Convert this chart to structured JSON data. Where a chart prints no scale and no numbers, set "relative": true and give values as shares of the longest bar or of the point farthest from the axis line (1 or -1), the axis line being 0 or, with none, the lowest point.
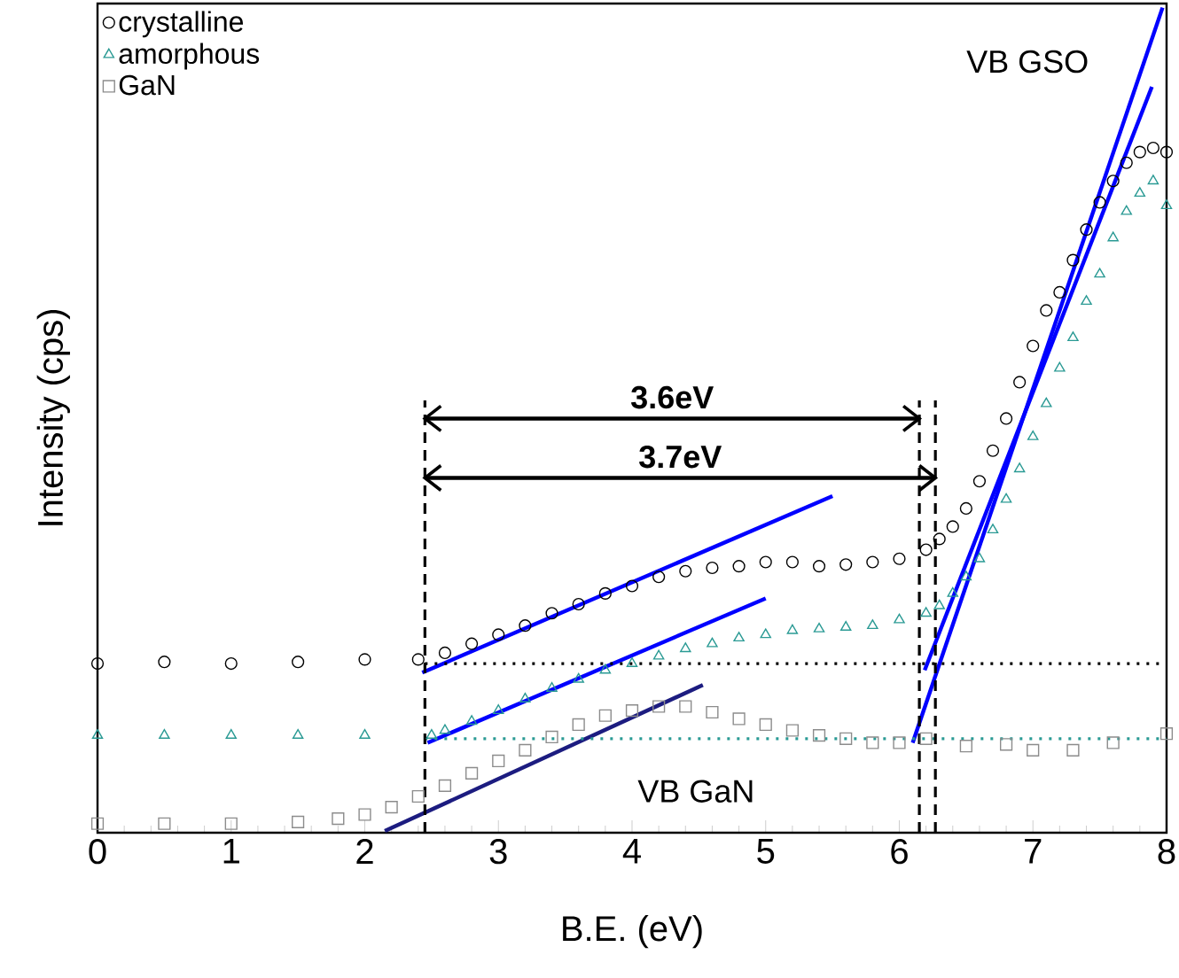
{
  "chart_data": {
    "type": "scatter",
    "relative": true,
    "xlabel": "B.E. (eV)",
    "ylabel": "Intensity (cps)",
    "xlim": [
      0,
      8
    ],
    "xticks": [
      0,
      1,
      2,
      3,
      4,
      5,
      6,
      7,
      8
    ],
    "legend": "top left",
    "annotations": [
      "3.6eV",
      "3.7eV",
      "VB GSO",
      "VB GaN"
    ],
    "series": [
      {
        "name": "crystalline",
        "marker": "circle",
        "color": "#000000",
        "x": [
          0,
          0.5,
          1,
          1.5,
          2,
          2.4,
          2.6,
          2.8,
          3.0,
          3.2,
          3.4,
          3.6,
          3.8,
          4.0,
          4.2,
          4.4,
          4.6,
          4.8,
          5.0,
          5.2,
          5.4,
          5.6,
          5.8,
          6.0,
          6.2,
          6.3,
          6.4,
          6.5,
          6.6,
          6.7,
          6.8,
          6.9,
          7.0,
          7.1,
          7.2,
          7.3,
          7.4,
          7.5,
          7.6,
          7.7,
          7.8,
          7.9,
          8.0
        ],
        "values": [
          0.205,
          0.207,
          0.205,
          0.207,
          0.21,
          0.21,
          0.218,
          0.229,
          0.24,
          0.251,
          0.266,
          0.277,
          0.29,
          0.299,
          0.31,
          0.317,
          0.321,
          0.323,
          0.328,
          0.328,
          0.323,
          0.325,
          0.328,
          0.332,
          0.343,
          0.356,
          0.371,
          0.393,
          0.426,
          0.463,
          0.502,
          0.546,
          0.59,
          0.633,
          0.655,
          0.694,
          0.731,
          0.764,
          0.79,
          0.812,
          0.825,
          0.83,
          0.825
        ]
      },
      {
        "name": "amorphous",
        "marker": "triangle",
        "color": "#2a9a94",
        "x": [
          0,
          0.5,
          1,
          1.5,
          2,
          2.5,
          2.6,
          2.8,
          3.0,
          3.2,
          3.4,
          3.6,
          3.8,
          4.0,
          4.2,
          4.4,
          4.6,
          4.8,
          5.0,
          5.2,
          5.4,
          5.6,
          5.8,
          6.0,
          6.2,
          6.3,
          6.4,
          6.5,
          6.6,
          6.7,
          6.8,
          6.9,
          7.0,
          7.1,
          7.2,
          7.3,
          7.4,
          7.5,
          7.6,
          7.7,
          7.8,
          7.9,
          8.0
        ],
        "values": [
          0.118,
          0.118,
          0.118,
          0.118,
          0.118,
          0.118,
          0.124,
          0.135,
          0.148,
          0.162,
          0.175,
          0.186,
          0.197,
          0.205,
          0.214,
          0.223,
          0.229,
          0.236,
          0.24,
          0.245,
          0.247,
          0.249,
          0.251,
          0.258,
          0.266,
          0.275,
          0.29,
          0.31,
          0.332,
          0.367,
          0.404,
          0.441,
          0.48,
          0.52,
          0.563,
          0.6,
          0.644,
          0.677,
          0.721,
          0.753,
          0.775,
          0.79,
          0.76
        ]
      },
      {
        "name": "GaN",
        "marker": "square",
        "color": "#8c8c8c",
        "x": [
          0,
          0.5,
          1,
          1.5,
          1.8,
          2.0,
          2.2,
          2.4,
          2.6,
          2.8,
          3.0,
          3.2,
          3.4,
          3.6,
          3.8,
          4.0,
          4.2,
          4.4,
          4.6,
          4.8,
          5.0,
          5.2,
          5.4,
          5.6,
          5.8,
          6.0,
          6.2,
          6.5,
          6.8,
          7.0,
          7.3,
          7.6,
          8.0
        ],
        "values": [
          0.011,
          0.011,
          0.011,
          0.013,
          0.017,
          0.022,
          0.031,
          0.044,
          0.057,
          0.072,
          0.087,
          0.1,
          0.116,
          0.131,
          0.142,
          0.148,
          0.153,
          0.153,
          0.146,
          0.138,
          0.131,
          0.124,
          0.118,
          0.114,
          0.109,
          0.109,
          0.114,
          0.105,
          0.107,
          0.1,
          0.1,
          0.109,
          0.12
        ]
      },
      {
        "type": "line",
        "color": "#0000ff",
        "line_style": "solid",
        "x": [
          2.43,
          5.5
        ],
        "values": [
          0.194,
          0.408
        ]
      },
      {
        "type": "line",
        "color": "#0000ff",
        "line_style": "solid",
        "x": [
          2.47,
          5.0
        ],
        "values": [
          0.109,
          0.284
        ]
      },
      {
        "type": "line",
        "color": "#1c1c80",
        "line_style": "solid",
        "x": [
          2.15,
          4.53
        ],
        "values": [
          0.002,
          0.179
        ]
      },
      {
        "type": "line",
        "color": "#0000ff",
        "line_style": "solid",
        "x": [
          6.1,
          7.97
        ],
        "values": [
          0.109,
          1.0
        ]
      },
      {
        "type": "line",
        "color": "#0000ff",
        "line_style": "solid",
        "x": [
          6.19,
          7.89
        ],
        "values": [
          0.197,
          0.904
        ]
      },
      {
        "type": "line",
        "color": "#000000",
        "line_style": "dotted",
        "x": [
          2.45,
          8.0
        ],
        "values": [
          0.205,
          0.205
        ]
      },
      {
        "type": "line",
        "color": "#2a9a94",
        "line_style": "dotted",
        "x": [
          2.45,
          8.0
        ],
        "values": [
          0.114,
          0.114
        ]
      },
      {
        "type": "line",
        "color": "#000000",
        "line_style": "dashed",
        "x": [
          2.45,
          2.45
        ],
        "values": [
          0,
          0.524
        ]
      },
      {
        "type": "line",
        "color": "#000000",
        "line_style": "dashed",
        "x": [
          6.15,
          6.15
        ],
        "values": [
          0,
          0.524
        ]
      },
      {
        "type": "line",
        "color": "#000000",
        "line_style": "dashed",
        "x": [
          6.27,
          6.27
        ],
        "values": [
          0,
          0.524
        ]
      },
      {
        "type": "line",
        "color": "#000000",
        "line_style": "solid",
        "x": [
          2.45,
          6.15
        ],
        "values": [
          0.502,
          0.502
        ]
      },
      {
        "type": "line",
        "color": "#000000",
        "line_style": "solid",
        "x": [
          2.45,
          6.27
        ],
        "values": [
          0.43,
          0.43
        ]
      }
    ]
  }
}
